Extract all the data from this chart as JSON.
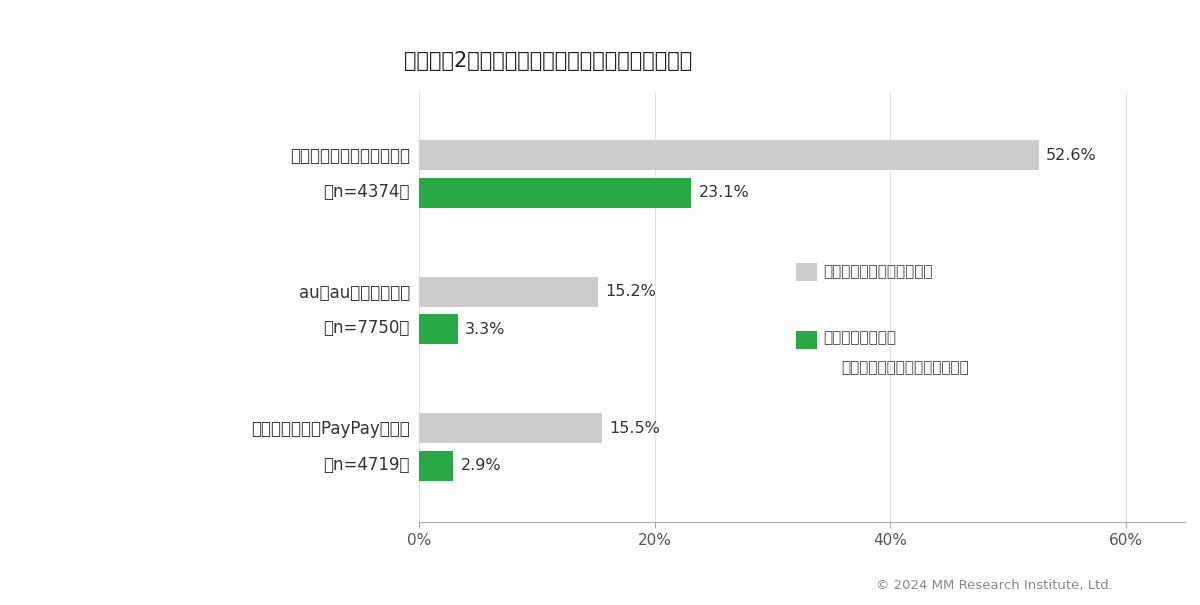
{
  "title": "【データ2】携帯キャリアと銀行のクロスユース率",
  "labels_line1": [
    "楽天モバイル（楽天銀行）",
    "au（auじぶん銀行）",
    "ソフトバンク（PayPay銀行）"
  ],
  "labels_line2": [
    "（n=4374）",
    "（n=7750）",
    "（n=4719）"
  ],
  "gray_values": [
    52.6,
    15.2,
    15.5
  ],
  "green_values": [
    23.1,
    3.3,
    2.9
  ],
  "gray_labels": [
    "52.6%",
    "15.2%",
    "15.5%"
  ],
  "green_labels": [
    "23.1%",
    "3.3%",
    "2.9%"
  ],
  "gray_color": "#cccccc",
  "green_color": "#29a846",
  "bar_height": 0.22,
  "xlim": [
    0,
    65
  ],
  "xticks": [
    0,
    20,
    40,
    60
  ],
  "xticklabels": [
    "0%",
    "20%",
    "40%",
    "60%"
  ],
  "legend_gray_label": "利用している（複数回答）",
  "legend_green_label1": "最も利用している",
  "legend_green_label2": "（クロスユース率／単一回答）",
  "copyright": "© 2024 MM Research Institute, Ltd.",
  "bg_color": "#ffffff",
  "title_fontsize": 15,
  "label_fontsize": 12,
  "value_fontsize": 11.5,
  "tick_fontsize": 11,
  "legend_fontsize": 11,
  "copyright_fontsize": 9.5
}
